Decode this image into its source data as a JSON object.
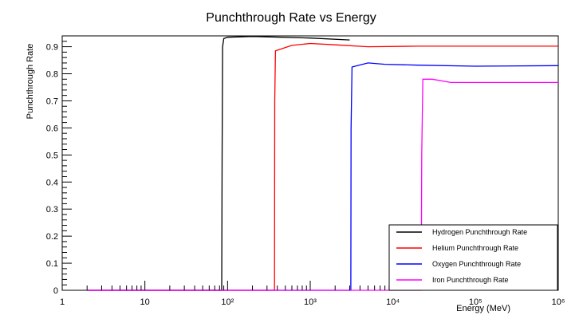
{
  "chart_data": {
    "type": "line",
    "title": "Punchthrough Rate vs Energy",
    "xlabel": "Energy (MeV)",
    "ylabel": "Punchthrough Rate",
    "xscale": "log",
    "xlim": [
      1,
      1000000
    ],
    "ylim": [
      0,
      0.94
    ],
    "xticks": [
      1,
      10,
      100,
      1000,
      10000,
      100000,
      1000000
    ],
    "xtick_labels": [
      "1",
      "10",
      "10²",
      "10³",
      "10⁴",
      "10⁵",
      "10⁶"
    ],
    "yticks": [
      0,
      0.1,
      0.2,
      0.3,
      0.4,
      0.5,
      0.6,
      0.7,
      0.8,
      0.9
    ],
    "ytick_labels": [
      "0",
      "0.1",
      "0.2",
      "0.3",
      "0.4",
      "0.5",
      "0.6",
      "0.7",
      "0.8",
      "0.9"
    ],
    "grid": false,
    "legend_position": "bottom-right",
    "series": [
      {
        "name": "Hydrogen Punchthrough Rate",
        "color": "#000000",
        "x": [
          2,
          85,
          86,
          87,
          90,
          100,
          200,
          1000,
          3000
        ],
        "y": [
          0,
          0,
          0.5,
          0.9,
          0.93,
          0.935,
          0.938,
          0.932,
          0.925
        ]
      },
      {
        "name": "Helium Punchthrough Rate",
        "color": "#ff0000",
        "x": [
          2,
          370,
          372,
          380,
          600,
          1000,
          2000,
          5000,
          20000,
          100000,
          1000000
        ],
        "y": [
          0,
          0,
          0.7,
          0.885,
          0.905,
          0.912,
          0.907,
          0.9,
          0.902,
          0.902,
          0.902
        ]
      },
      {
        "name": "Oxygen Punchthrough Rate",
        "color": "#0000ff",
        "x": [
          2,
          3100,
          3120,
          3200,
          5000,
          8000,
          20000,
          100000,
          1000000
        ],
        "y": [
          0,
          0,
          0.6,
          0.825,
          0.84,
          0.835,
          0.832,
          0.828,
          0.83
        ]
      },
      {
        "name": "Iron Punchthrough Rate",
        "color": "#ff00ff",
        "x": [
          2,
          22000,
          22300,
          23000,
          30000,
          50000,
          100000,
          1000000
        ],
        "y": [
          0,
          0,
          0.5,
          0.78,
          0.78,
          0.768,
          0.768,
          0.768
        ]
      }
    ]
  }
}
